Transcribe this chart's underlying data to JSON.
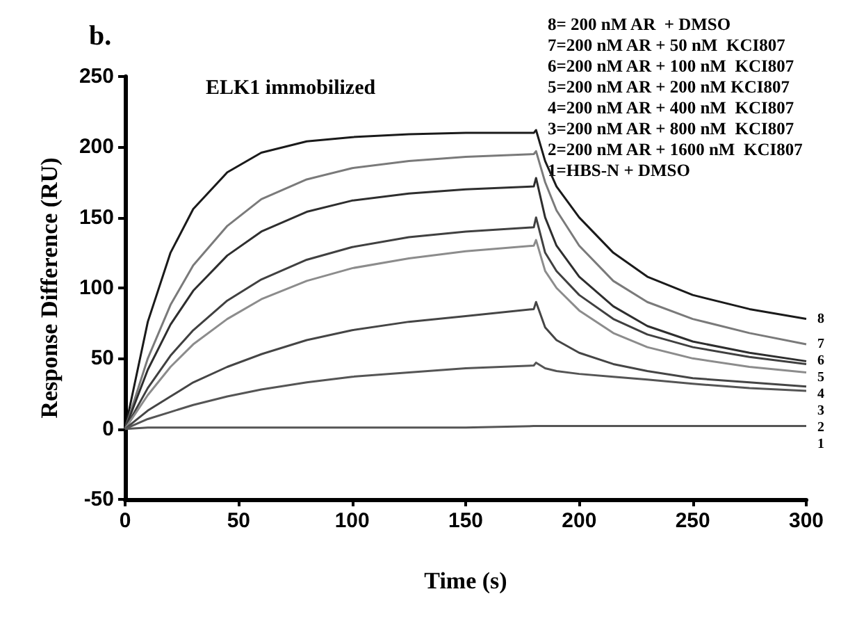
{
  "chart_data": {
    "type": "line",
    "xlabel": "Time (s)",
    "ylabel": "Response Difference (RU)",
    "annotations": [
      "b.",
      "ELK1 immobilized",
      "8= 200 nM AR  + DMSO",
      "7=200 nM AR + 50 nM  KCI807",
      "6=200 nM AR + 100 nM  KCI807",
      "5=200 nM AR + 200 nM KCI807",
      "4=200 nM AR + 400 nM  KCI807",
      "3=200 nM AR + 800 nM  KCI807",
      "2=200 nM AR + 1600 nM  KCI807",
      "1=HBS-N + DMSO"
    ],
    "x": [
      0,
      10,
      20,
      30,
      45,
      60,
      80,
      100,
      125,
      150,
      180,
      181,
      185,
      190,
      200,
      215,
      230,
      250,
      275,
      300
    ],
    "series": [
      {
        "name": "8",
        "color": "#1a1a1a",
        "values": [
          0,
          76,
          125,
          156,
          182,
          196,
          204,
          207,
          209,
          210,
          210,
          212,
          190,
          172,
          150,
          125,
          108,
          95,
          85,
          78
        ]
      },
      {
        "name": "7",
        "color": "#7a7a7a",
        "values": [
          0,
          50,
          88,
          116,
          144,
          163,
          177,
          185,
          190,
          193,
          195,
          197,
          175,
          155,
          130,
          105,
          90,
          78,
          68,
          60
        ]
      },
      {
        "name": "6",
        "color": "#2e2e2e",
        "values": [
          0,
          42,
          74,
          98,
          123,
          140,
          154,
          162,
          167,
          170,
          172,
          178,
          150,
          130,
          108,
          87,
          73,
          62,
          54,
          48
        ]
      },
      {
        "name": "5",
        "color": "#404040",
        "values": [
          0,
          29,
          52,
          70,
          91,
          106,
          120,
          129,
          136,
          140,
          143,
          150,
          125,
          112,
          95,
          78,
          67,
          58,
          51,
          46
        ]
      },
      {
        "name": "4",
        "color": "#8c8c8c",
        "values": [
          0,
          24,
          44,
          60,
          78,
          92,
          105,
          114,
          121,
          126,
          130,
          134,
          112,
          100,
          84,
          68,
          58,
          50,
          44,
          40
        ]
      },
      {
        "name": "3",
        "color": "#454545",
        "values": [
          0,
          13,
          23,
          33,
          44,
          53,
          63,
          70,
          76,
          80,
          85,
          90,
          72,
          63,
          54,
          46,
          41,
          36,
          33,
          30
        ]
      },
      {
        "name": "2",
        "color": "#555555",
        "values": [
          0,
          7,
          12,
          17,
          23,
          28,
          33,
          37,
          40,
          43,
          45,
          47,
          43,
          41,
          39,
          37,
          35,
          32,
          29,
          27
        ]
      },
      {
        "name": "1",
        "color": "#555555",
        "values": [
          0,
          1,
          1,
          1,
          1,
          1,
          1,
          1,
          1,
          1,
          2,
          2,
          2,
          2,
          2,
          2,
          2,
          2,
          2,
          2
        ]
      }
    ],
    "xlim": [
      0,
      300
    ],
    "xticks": [
      0,
      50,
      100,
      150,
      200,
      250,
      300
    ],
    "ylim": [
      -50,
      250
    ],
    "yticks": [
      -50,
      0,
      50,
      100,
      150,
      200,
      250
    ],
    "grid": false,
    "legend": false,
    "marker": "none",
    "line_style": "solid"
  }
}
